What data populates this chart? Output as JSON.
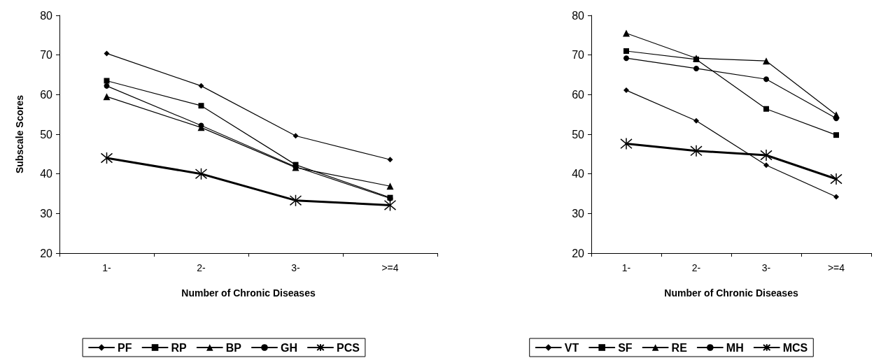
{
  "chart_data": [
    {
      "type": "line",
      "xlabel": "Number of Chronic Diseases",
      "ylabel": "Subscale Scores",
      "categories": [
        "1-",
        "2-",
        "3-",
        ">=4"
      ],
      "ylim": [
        20,
        80
      ],
      "yticks": [
        20,
        30,
        40,
        50,
        60,
        70,
        80
      ],
      "grid": false,
      "legend": "bottom",
      "line_style": "solid",
      "series": [
        {
          "name": "PF",
          "color": "#000000",
          "marker": "diamond",
          "values": [
            70.4,
            62.2,
            49.6,
            43.6
          ]
        },
        {
          "name": "RP",
          "color": "#000000",
          "marker": "square",
          "values": [
            63.5,
            57.2,
            42.3,
            34.0
          ]
        },
        {
          "name": "BP",
          "color": "#000000",
          "marker": "triangle",
          "values": [
            59.5,
            51.7,
            41.6,
            36.9
          ]
        },
        {
          "name": "GH",
          "color": "#000000",
          "marker": "circle",
          "values": [
            62.2,
            52.2,
            41.8,
            33.8
          ]
        },
        {
          "name": "PCS",
          "color": "#000000",
          "marker": "cross",
          "values": [
            44.0,
            40.0,
            33.3,
            32.1
          ]
        }
      ]
    },
    {
      "type": "line",
      "xlabel": "Number of Chronic Diseases",
      "categories": [
        "1-",
        "2-",
        "3-",
        ">=4"
      ],
      "ylim": [
        20,
        80
      ],
      "yticks": [
        20,
        30,
        40,
        50,
        60,
        70,
        80
      ],
      "grid": false,
      "legend": "bottom",
      "line_style": "solid",
      "series": [
        {
          "name": "VT",
          "color": "#000000",
          "marker": "diamond",
          "values": [
            61.1,
            53.4,
            42.2,
            34.2
          ]
        },
        {
          "name": "SF",
          "color": "#000000",
          "marker": "square",
          "values": [
            71.0,
            68.9,
            56.4,
            49.8
          ]
        },
        {
          "name": "RE",
          "color": "#000000",
          "marker": "triangle",
          "values": [
            75.5,
            69.2,
            68.5,
            54.9
          ]
        },
        {
          "name": "MH",
          "color": "#000000",
          "marker": "circle",
          "values": [
            69.2,
            66.6,
            63.9,
            54.0
          ]
        },
        {
          "name": "MCS",
          "color": "#000000",
          "marker": "cross",
          "values": [
            47.6,
            45.8,
            44.7,
            38.7
          ]
        }
      ]
    }
  ]
}
